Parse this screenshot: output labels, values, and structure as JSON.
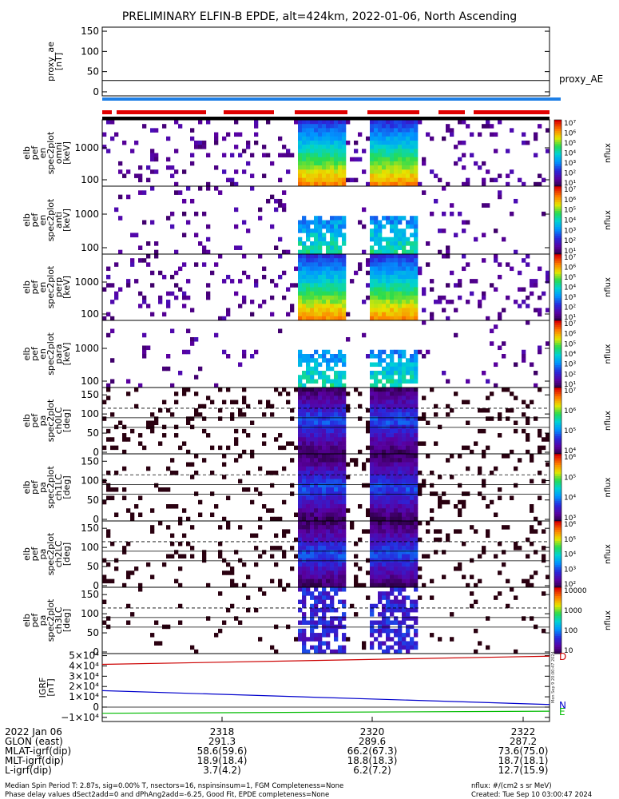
{
  "title": "PRELIMINARY ELFIN-B EPDE, alt=424km, 2022-01-06, North Ascending",
  "chart_data": [
    {
      "type": "line",
      "id": "proxy_ae",
      "ylabel_lines": [
        "proxy_ae",
        "[nT]"
      ],
      "yticks": [
        "150",
        "100",
        "50",
        "0"
      ],
      "ylim": [
        -10,
        160
      ],
      "series": [
        {
          "name": "proxy_AE",
          "x": [
            0,
            1
          ],
          "y": [
            28,
            28
          ]
        }
      ]
    },
    {
      "type": "heatmap",
      "id": "pef_en_omni",
      "ylabel_lines": [
        "elb",
        "pef",
        "en",
        "spec2plot",
        "omni",
        "[keV]"
      ],
      "yticks": [
        "1000",
        "100"
      ],
      "colorbar_ticks": [
        "10⁷",
        "10⁶",
        "10⁵",
        "10⁴",
        "10³",
        "10²",
        "10¹"
      ],
      "colorbar_label": "nflux"
    },
    {
      "type": "heatmap",
      "id": "pef_en_anti",
      "ylabel_lines": [
        "elb",
        "pef",
        "en",
        "spec2plot",
        "anti",
        "[keV]"
      ],
      "yticks": [
        "1000",
        "100"
      ],
      "colorbar_ticks": [
        "10⁷",
        "10⁶",
        "10⁵",
        "10⁴",
        "10³",
        "10²",
        "10¹"
      ],
      "colorbar_label": "nflux"
    },
    {
      "type": "heatmap",
      "id": "pef_en_perp",
      "ylabel_lines": [
        "elb",
        "pef",
        "en",
        "spec2plot",
        "perp",
        "[keV]"
      ],
      "yticks": [
        "1000",
        "100"
      ],
      "colorbar_ticks": [
        "10⁷",
        "10⁶",
        "10⁵",
        "10⁴",
        "10³",
        "10²",
        "10¹"
      ],
      "colorbar_label": "nflux"
    },
    {
      "type": "heatmap",
      "id": "pef_en_para",
      "ylabel_lines": [
        "elb",
        "pef",
        "en",
        "spec2plot",
        "para",
        "[keV]"
      ],
      "yticks": [
        "1000",
        "100"
      ],
      "colorbar_ticks": [
        "10⁷",
        "10⁶",
        "10⁵",
        "10⁴",
        "10³",
        "10²",
        "10¹"
      ],
      "colorbar_label": "nflux"
    },
    {
      "type": "heatmap",
      "id": "pa_ch0",
      "ylabel_lines": [
        "elb",
        "pef",
        "pa",
        "spec2plot",
        "ch0LC",
        "[deg]"
      ],
      "yticks": [
        "150",
        "100",
        "50",
        "0"
      ],
      "colorbar_ticks": [
        "10⁷",
        "10⁶",
        "10⁵",
        "10⁴"
      ],
      "colorbar_label": "nflux"
    },
    {
      "type": "heatmap",
      "id": "pa_ch1",
      "ylabel_lines": [
        "elb",
        "pef",
        "pa",
        "spec2plot",
        "ch1LC",
        "[deg]"
      ],
      "yticks": [
        "150",
        "100",
        "50",
        "0"
      ],
      "colorbar_ticks": [
        "10⁶",
        "10⁵",
        "10⁴",
        "10³"
      ],
      "colorbar_label": "nflux"
    },
    {
      "type": "heatmap",
      "id": "pa_ch2",
      "ylabel_lines": [
        "elb",
        "pef",
        "pa",
        "spec2plot",
        "ch2LC",
        "[deg]"
      ],
      "yticks": [
        "150",
        "100",
        "50",
        "0"
      ],
      "colorbar_ticks": [
        "10⁶",
        "10⁵",
        "10⁴",
        "10³",
        "10²"
      ],
      "colorbar_label": "nflux"
    },
    {
      "type": "heatmap",
      "id": "pa_ch3",
      "ylabel_lines": [
        "elb",
        "pef",
        "pa",
        "spec2plot",
        "ch3LC",
        "[deg]"
      ],
      "yticks": [
        "150",
        "100",
        "50",
        "0"
      ],
      "colorbar_ticks": [
        "10000",
        "1000",
        "100",
        "10"
      ],
      "colorbar_label": "nflux"
    },
    {
      "type": "line",
      "id": "igrf",
      "ylabel_lines": [
        "IGRF",
        "[nT]"
      ],
      "yticks": [
        "5×10⁴",
        "4×10⁴",
        "3×10⁴",
        "2×10⁴",
        "1×10⁴",
        "0",
        "−1×10⁴"
      ],
      "ylim": [
        -14000,
        52000
      ],
      "series": [
        {
          "name": "D",
          "color": "#cc0000",
          "x": [
            0,
            1
          ],
          "y": [
            41500,
            49500
          ]
        },
        {
          "name": "N",
          "color": "#0000cc",
          "x": [
            0,
            1
          ],
          "y": [
            16000,
            2500
          ]
        },
        {
          "name": "E",
          "color": "#00bb00",
          "x": [
            0,
            1
          ],
          "y": [
            -6000,
            -4000
          ]
        }
      ]
    }
  ],
  "orbit_bar": {
    "blue": "#1e7fe6",
    "red": "#e00000",
    "black": "#000000"
  },
  "colors": {
    "frame": "#000000",
    "dashed": "#000000"
  },
  "side_note": "Mon Sep  9 20:00:47 2024",
  "time_axis": {
    "rows": [
      {
        "label": "2022 Jan 06",
        "values": [
          "2318",
          "2320",
          "2322"
        ]
      },
      {
        "label": "GLON (east)",
        "values": [
          "291.3",
          "289.6",
          "287.2"
        ]
      },
      {
        "label": "MLAT-igrf(dip)",
        "values": [
          "58.6(59.6)",
          "66.2(67.3)",
          "73.6(75.0)"
        ]
      },
      {
        "label": "MLT-igrf(dip)",
        "values": [
          "18.9(18.4)",
          "18.8(18.3)",
          "18.7(18.1)"
        ]
      },
      {
        "label": "L-igrf(dip)",
        "values": [
          "3.7(4.2)",
          "6.2(7.2)",
          "12.7(15.9)"
        ]
      }
    ]
  },
  "footer": {
    "line1_left": "Median Spin Period T: 2.87s, sig=0.00% T, nsectors=16, nspinsinsum=1, FGM Completeness=None",
    "line2_left": "Phase delay values dSect2add=0 and dPhAng2add=-6.25, Good Fit, EPDE completeness=None",
    "line1_right": "nflux: #/(cm2 s sr MeV)",
    "line2_right": "Created: Tue Sep 10 03:00:47 2024"
  }
}
